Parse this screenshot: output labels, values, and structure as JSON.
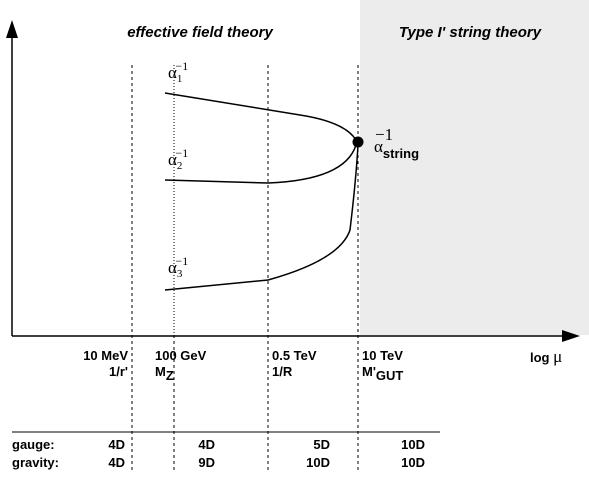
{
  "regions": {
    "left": "effective field theory",
    "right": "Type I' string theory"
  },
  "couplings": [
    {
      "base": "α",
      "sub": "1",
      "sup": "−1"
    },
    {
      "base": "α",
      "sub": "2",
      "sup": "−1"
    },
    {
      "base": "α",
      "sub": "3",
      "sup": "−1"
    }
  ],
  "unified": {
    "base": "α",
    "sub": "string",
    "sup": "−1"
  },
  "axis_label": {
    "text": "log ",
    "symbol": "μ"
  },
  "scales": [
    {
      "energy": "10 MeV",
      "label": "1/r'"
    },
    {
      "energy": "100 GeV",
      "label": "M",
      "sub": "Z"
    },
    {
      "energy": "0.5 TeV",
      "label": "1/R"
    },
    {
      "energy": "10 TeV",
      "label": "M'",
      "sub": "GUT"
    }
  ],
  "table": {
    "rows": [
      [
        "gauge:",
        "4D",
        "4D",
        "5D",
        "10D"
      ],
      [
        "gravity:",
        "4D",
        "9D",
        "10D",
        "10D"
      ]
    ]
  }
}
